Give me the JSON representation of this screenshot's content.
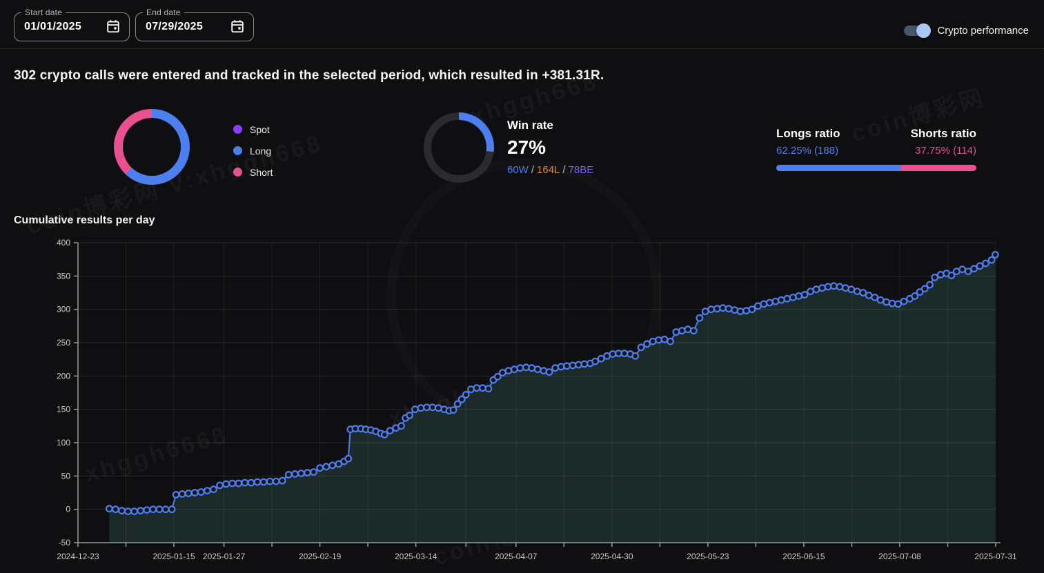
{
  "topbar": {
    "start_date": {
      "label": "Start date",
      "value": "01/01/2025"
    },
    "end_date": {
      "label": "End date",
      "value": "07/29/2025"
    },
    "toggle_label": "Crypto performance"
  },
  "headline": "302 crypto calls were entered and tracked in the selected period, which resulted in +381.31R.",
  "colors": {
    "long": "#4d7ff0",
    "short": "#e9508f",
    "spot": "#8b3dff",
    "lose_orange": "#d08b3e",
    "breakeven_purple": "#7a5cf5",
    "ring_bg": "#2b2b2e",
    "area_fill": "#1c2a2a",
    "marker_fill": "#131519",
    "axis": "#9a9a9a",
    "tick_text": "#c9c9c9"
  },
  "position_donut": {
    "long_pct": 62.25,
    "short_pct": 37.75,
    "spot_pct": 0,
    "legend": [
      {
        "label": "Spot"
      },
      {
        "label": "Long"
      },
      {
        "label": "Short"
      }
    ]
  },
  "win_rate": {
    "title": "Win rate",
    "value": "27%",
    "pct": 27,
    "wins": "60W",
    "losses": "164L",
    "breakeven": "78BE",
    "sep": "/"
  },
  "ratio": {
    "longs_label": "Longs ratio",
    "shorts_label": "Shorts ratio",
    "longs_value": "62.25% (188)",
    "shorts_value": "37.75% (114)",
    "longs_pct": 62.25,
    "shorts_pct": 37.75
  },
  "watermark": {
    "items": [
      "coin博彩网",
      "V:xhggh668",
      "xhggh6668",
      "coin博彩网 V:xhggh668"
    ]
  },
  "chart_data": {
    "type": "line",
    "title": "Cumulative results per day",
    "xlabel": "",
    "ylabel": "",
    "x_axis_start_date": "2024-12-23",
    "x_axis_end_date": "2025-07-31",
    "x_min_days": 0,
    "x_max_days": 220,
    "ylim": [
      -50,
      400
    ],
    "y_ticks": [
      400,
      350,
      300,
      250,
      200,
      150,
      100,
      50,
      0,
      -50
    ],
    "x_labels": [
      {
        "d": 0,
        "t": "2024-12-23"
      },
      {
        "d": 23,
        "t": "2025-01-15"
      },
      {
        "d": 35,
        "t": "2025-01-27"
      },
      {
        "d": 58,
        "t": "2025-02-19"
      },
      {
        "d": 81,
        "t": "2025-03-14"
      },
      {
        "d": 105,
        "t": "2025-04-07"
      },
      {
        "d": 128,
        "t": "2025-04-30"
      },
      {
        "d": 151,
        "t": "2025-05-23"
      },
      {
        "d": 174,
        "t": "2025-06-15"
      },
      {
        "d": 197,
        "t": "2025-07-08"
      },
      {
        "d": 220,
        "t": "2025-07-31"
      }
    ],
    "minor_tick_days": [
      0,
      11.5,
      23,
      35,
      46.5,
      58,
      69.5,
      81,
      93,
      105,
      116.5,
      128,
      139.5,
      151,
      162.5,
      174,
      185.5,
      197,
      208.5,
      220
    ],
    "grid": true,
    "legend_position": "none",
    "series_name": "Cumulative R",
    "points": [
      [
        7.5,
        1
      ],
      [
        9,
        0
      ],
      [
        10.5,
        -2
      ],
      [
        12,
        -3
      ],
      [
        13.5,
        -3
      ],
      [
        15,
        -2
      ],
      [
        16.5,
        -1
      ],
      [
        18,
        0
      ],
      [
        19.5,
        0
      ],
      [
        21,
        0
      ],
      [
        22.5,
        0
      ],
      [
        23.5,
        22
      ],
      [
        25,
        23
      ],
      [
        26.5,
        24
      ],
      [
        28,
        25
      ],
      [
        29.5,
        26
      ],
      [
        31,
        28
      ],
      [
        32.5,
        30
      ],
      [
        34,
        36
      ],
      [
        35.5,
        38
      ],
      [
        37,
        39
      ],
      [
        38.5,
        39
      ],
      [
        40,
        40
      ],
      [
        41.5,
        40
      ],
      [
        43,
        41
      ],
      [
        44.5,
        41
      ],
      [
        46,
        42
      ],
      [
        47.5,
        42
      ],
      [
        49,
        43
      ],
      [
        50.5,
        52
      ],
      [
        52,
        53
      ],
      [
        53.5,
        54
      ],
      [
        55,
        55
      ],
      [
        56.5,
        56
      ],
      [
        58,
        62
      ],
      [
        59.5,
        64
      ],
      [
        61,
        66
      ],
      [
        62.5,
        68
      ],
      [
        63.8,
        72
      ],
      [
        64.8,
        76
      ],
      [
        65.3,
        120
      ],
      [
        66.5,
        121
      ],
      [
        67.8,
        121
      ],
      [
        69,
        120
      ],
      [
        70.2,
        119
      ],
      [
        71.4,
        117
      ],
      [
        72.6,
        114
      ],
      [
        73.5,
        112
      ],
      [
        74.8,
        118
      ],
      [
        76.2,
        122
      ],
      [
        77.5,
        125
      ],
      [
        78.5,
        137
      ],
      [
        79.5,
        141
      ],
      [
        80.8,
        150
      ],
      [
        82.2,
        152
      ],
      [
        83.6,
        153
      ],
      [
        85,
        153
      ],
      [
        86.4,
        152
      ],
      [
        87.8,
        150
      ],
      [
        89,
        148
      ],
      [
        90,
        149
      ],
      [
        91,
        158
      ],
      [
        92,
        165
      ],
      [
        93,
        172
      ],
      [
        94.2,
        180
      ],
      [
        95.6,
        182
      ],
      [
        97,
        182
      ],
      [
        98.4,
        181
      ],
      [
        99.6,
        194
      ],
      [
        100.6,
        199
      ],
      [
        101.8,
        205
      ],
      [
        103.2,
        208
      ],
      [
        104.6,
        210
      ],
      [
        106,
        212
      ],
      [
        107.4,
        213
      ],
      [
        108.8,
        212
      ],
      [
        110.2,
        210
      ],
      [
        111.6,
        208
      ],
      [
        113,
        206
      ],
      [
        114.4,
        212
      ],
      [
        115.8,
        214
      ],
      [
        117.2,
        215
      ],
      [
        118.6,
        216
      ],
      [
        120,
        217
      ],
      [
        121.4,
        218
      ],
      [
        122.8,
        219
      ],
      [
        124,
        222
      ],
      [
        125.4,
        226
      ],
      [
        126.8,
        230
      ],
      [
        128.2,
        233
      ],
      [
        129.6,
        234
      ],
      [
        131,
        234
      ],
      [
        132.4,
        233
      ],
      [
        133.6,
        230
      ],
      [
        135,
        243
      ],
      [
        136.4,
        248
      ],
      [
        137.8,
        252
      ],
      [
        139.2,
        254
      ],
      [
        140.6,
        255
      ],
      [
        142,
        252
      ],
      [
        143.4,
        266
      ],
      [
        144.8,
        268
      ],
      [
        146.2,
        270
      ],
      [
        147.6,
        268
      ],
      [
        149,
        287
      ],
      [
        150.4,
        297
      ],
      [
        151.8,
        300
      ],
      [
        153.2,
        301
      ],
      [
        154.6,
        302
      ],
      [
        156,
        301
      ],
      [
        157.4,
        299
      ],
      [
        158.8,
        297
      ],
      [
        160.2,
        298
      ],
      [
        161.6,
        300
      ],
      [
        163,
        305
      ],
      [
        164.4,
        308
      ],
      [
        165.8,
        310
      ],
      [
        167.2,
        312
      ],
      [
        168.6,
        314
      ],
      [
        170,
        316
      ],
      [
        171.4,
        318
      ],
      [
        172.8,
        320
      ],
      [
        174.2,
        322
      ],
      [
        175.6,
        327
      ],
      [
        177,
        330
      ],
      [
        178.4,
        332
      ],
      [
        179.8,
        334
      ],
      [
        181.2,
        335
      ],
      [
        182.6,
        334
      ],
      [
        184,
        332
      ],
      [
        185.4,
        330
      ],
      [
        186.8,
        327
      ],
      [
        188.2,
        325
      ],
      [
        189.6,
        321
      ],
      [
        191,
        318
      ],
      [
        192.4,
        314
      ],
      [
        193.8,
        311
      ],
      [
        195.2,
        309
      ],
      [
        196.6,
        308
      ],
      [
        198,
        312
      ],
      [
        199.4,
        316
      ],
      [
        200.6,
        320
      ],
      [
        201.8,
        326
      ],
      [
        203,
        331
      ],
      [
        204.2,
        337
      ],
      [
        205.4,
        348
      ],
      [
        206.8,
        352
      ],
      [
        208.2,
        354
      ],
      [
        209.4,
        351
      ],
      [
        210.6,
        357
      ],
      [
        212,
        360
      ],
      [
        213.4,
        357
      ],
      [
        214.8,
        361
      ],
      [
        216.2,
        365
      ],
      [
        217.6,
        369
      ],
      [
        219,
        374
      ],
      [
        219.9,
        382
      ]
    ]
  }
}
